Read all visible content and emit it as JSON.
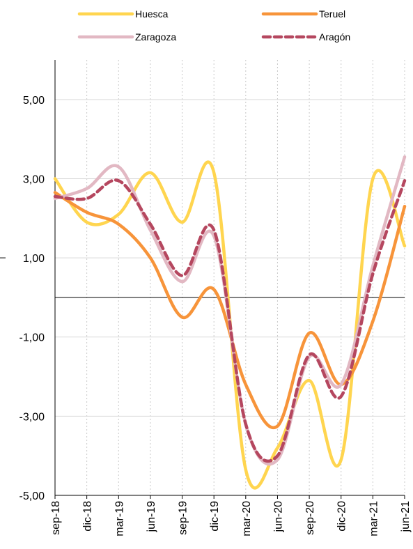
{
  "chart_data": {
    "type": "line",
    "title": "",
    "xlabel": "",
    "ylabel": "",
    "x": [
      "sep-18",
      "dic-18",
      "mar-19",
      "jun-19",
      "sep-19",
      "dic-19",
      "mar-20",
      "jun-20",
      "sep-20",
      "dic-20",
      "mar-21",
      "jun-21"
    ],
    "ylim": [
      -5,
      6
    ],
    "yticks": [
      -5,
      -3,
      -1,
      1,
      3,
      5
    ],
    "ytick_labels": [
      "-5,00",
      "-3,00",
      "-1,00",
      "1,00",
      "3,00",
      "5,00"
    ],
    "grid": "vertical",
    "legend": "top",
    "series": [
      {
        "name": "Huesca",
        "color": "#FFD54F",
        "dash": "solid",
        "values": [
          3.0,
          1.9,
          2.1,
          3.15,
          1.9,
          3.15,
          -4.35,
          -3.8,
          -2.1,
          -4.1,
          3.0,
          1.3
        ]
      },
      {
        "name": "Teruel",
        "color": "#F7943A",
        "dash": "solid",
        "values": [
          2.65,
          2.15,
          1.85,
          1.0,
          -0.5,
          0.2,
          -2.2,
          -3.25,
          -0.9,
          -2.2,
          -0.6,
          2.3
        ]
      },
      {
        "name": "Zaragoza",
        "color": "#E2B8C3",
        "dash": "solid",
        "values": [
          2.5,
          2.75,
          3.3,
          1.7,
          0.4,
          1.55,
          -3.2,
          -4.1,
          -1.5,
          -2.2,
          0.8,
          3.55
        ]
      },
      {
        "name": "Aragón",
        "color": "#B5475F",
        "dash": "dashed",
        "values": [
          2.55,
          2.5,
          2.95,
          1.85,
          0.55,
          1.7,
          -3.2,
          -4.0,
          -1.45,
          -2.5,
          0.6,
          2.95
        ]
      }
    ]
  }
}
